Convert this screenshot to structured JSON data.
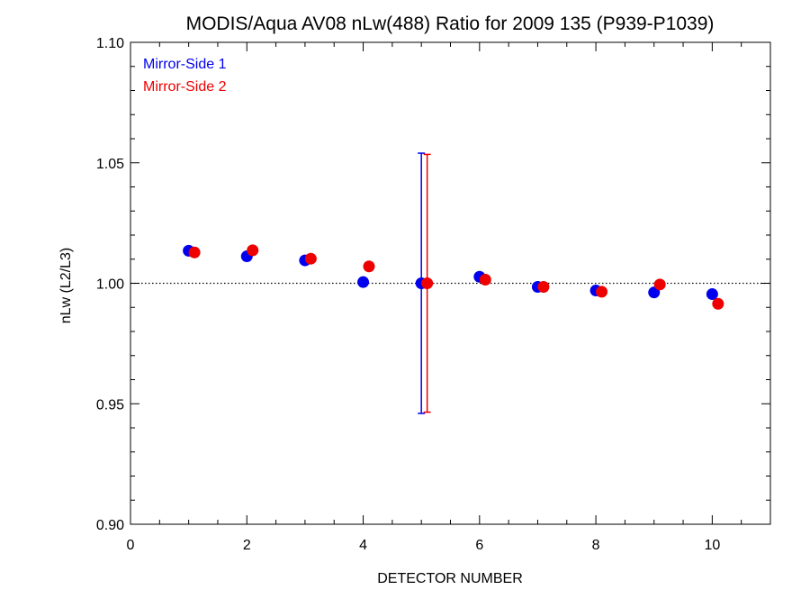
{
  "chart_data": {
    "type": "scatter",
    "title": "MODIS/Aqua AV08 nLw(488) Ratio for 2009 135 (P939-P1039)",
    "xlabel": "DETECTOR NUMBER",
    "ylabel": "nLw (L2/L3)",
    "xlim": [
      0,
      11
    ],
    "ylim": [
      0.9,
      1.1
    ],
    "xticks": [
      0,
      2,
      4,
      6,
      8,
      10
    ],
    "xtick_labels": [
      "0",
      "2",
      "4",
      "6",
      "8",
      "10"
    ],
    "yticks": [
      0.9,
      0.95,
      1.0,
      1.05,
      1.1
    ],
    "ytick_labels": [
      "0.90",
      "0.95",
      "1.00",
      "1.05",
      "1.10"
    ],
    "reference_line": 1.0,
    "grid": false,
    "legend_position": "top-left",
    "series": [
      {
        "name": "Mirror-Side 1",
        "color": "#0000ee",
        "x": [
          1,
          2,
          3,
          4,
          5,
          6,
          7,
          8,
          9,
          10
        ],
        "y": [
          1.0135,
          1.0112,
          1.0095,
          1.0005,
          1.0,
          1.0027,
          0.9985,
          0.997,
          0.9962,
          0.9955
        ],
        "error_bar": {
          "x": 5,
          "low": 0.946,
          "high": 1.054
        }
      },
      {
        "name": "Mirror-Side 2",
        "color": "#ee0000",
        "x": [
          1.1,
          2.1,
          3.1,
          4.1,
          5.1,
          6.1,
          7.1,
          8.1,
          9.1,
          10.1
        ],
        "y": [
          1.0128,
          1.0137,
          1.0102,
          1.007,
          1.0,
          1.0015,
          0.9985,
          0.9965,
          0.9995,
          0.9915
        ],
        "error_bar": {
          "x": 5.1,
          "low": 0.9465,
          "high": 1.0535
        }
      }
    ]
  }
}
